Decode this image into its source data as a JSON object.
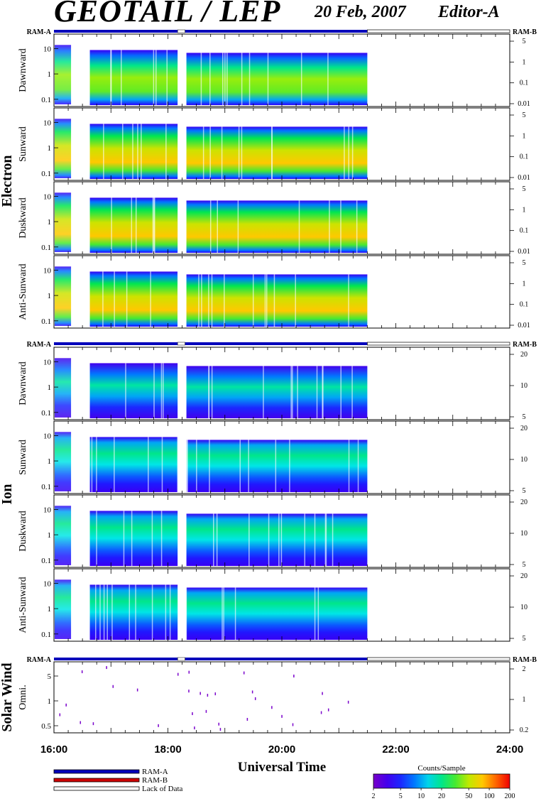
{
  "header": {
    "title": "GEOTAIL / LEP",
    "date": "20 Feb, 2007",
    "editor": "Editor-A"
  },
  "chart_data": {
    "type": "heatmap",
    "xlabel": "Universal Time",
    "x_ticks": [
      "16:00",
      "18:00",
      "20:00",
      "22:00",
      "24:00"
    ],
    "xlim_hours": [
      16,
      24
    ],
    "data_end_hour": 21.5,
    "data_gaps_hours": [
      [
        18.17,
        18.3
      ]
    ],
    "ram_markers": {
      "left": "RAM-A",
      "right": "RAM-B"
    },
    "groups": [
      {
        "name": "Electron",
        "panels": [
          {
            "label": "Dawnward",
            "y_ticks": [
              "10",
              "1",
              "0.1"
            ],
            "right_ticks": [
              "5",
              "1",
              "0.1",
              "0.01"
            ]
          },
          {
            "label": "Sunward",
            "y_ticks": [
              "10",
              "1",
              "0.1"
            ],
            "right_ticks": [
              "5",
              "1",
              "0.1",
              "0.01"
            ]
          },
          {
            "label": "Duskward",
            "y_ticks": [
              "10",
              "1",
              "0.1"
            ],
            "right_ticks": [
              "5",
              "1",
              "0.1",
              "0.01"
            ]
          },
          {
            "label": "Anti-Sunward",
            "y_ticks": [
              "10",
              "1",
              "0.1"
            ],
            "right_ticks": [
              "5",
              "1",
              "0.1",
              "0.01"
            ]
          }
        ]
      },
      {
        "name": "Ion",
        "panels": [
          {
            "label": "Dawnward",
            "y_ticks": [
              "10",
              "1",
              "0.1"
            ],
            "right_ticks": [
              "20",
              "10",
              "5"
            ]
          },
          {
            "label": "Sunward",
            "y_ticks": [
              "10",
              "1",
              "0.1"
            ],
            "right_ticks": [
              "20",
              "10",
              "5"
            ]
          },
          {
            "label": "Duskward",
            "y_ticks": [
              "10",
              "1",
              "0.1"
            ],
            "right_ticks": [
              "20",
              "10",
              "5"
            ]
          },
          {
            "label": "Anti-Sunward",
            "y_ticks": [
              "10",
              "1",
              "0.1"
            ],
            "right_ticks": [
              "20",
              "10",
              "5"
            ]
          }
        ]
      },
      {
        "name": "Solar Wind",
        "panels": [
          {
            "label": "Omni.",
            "y_ticks": [
              "5",
              "1",
              "0.5"
            ],
            "right_ticks": [
              "2",
              "1",
              "0.2"
            ]
          }
        ]
      }
    ],
    "legend": {
      "items": [
        "RAM-A",
        "RAM-B",
        "Lack of Data"
      ],
      "colors": {
        "RAM-A": "#0000bb",
        "RAM-B": "#cc0000",
        "Lack of Data": "#ffffff"
      }
    },
    "colorbar": {
      "title": "Counts/Sample",
      "ticks": [
        "2",
        "5",
        "10",
        "20",
        "50",
        "100",
        "200"
      ],
      "range": [
        2,
        200
      ],
      "scale": "log"
    }
  }
}
